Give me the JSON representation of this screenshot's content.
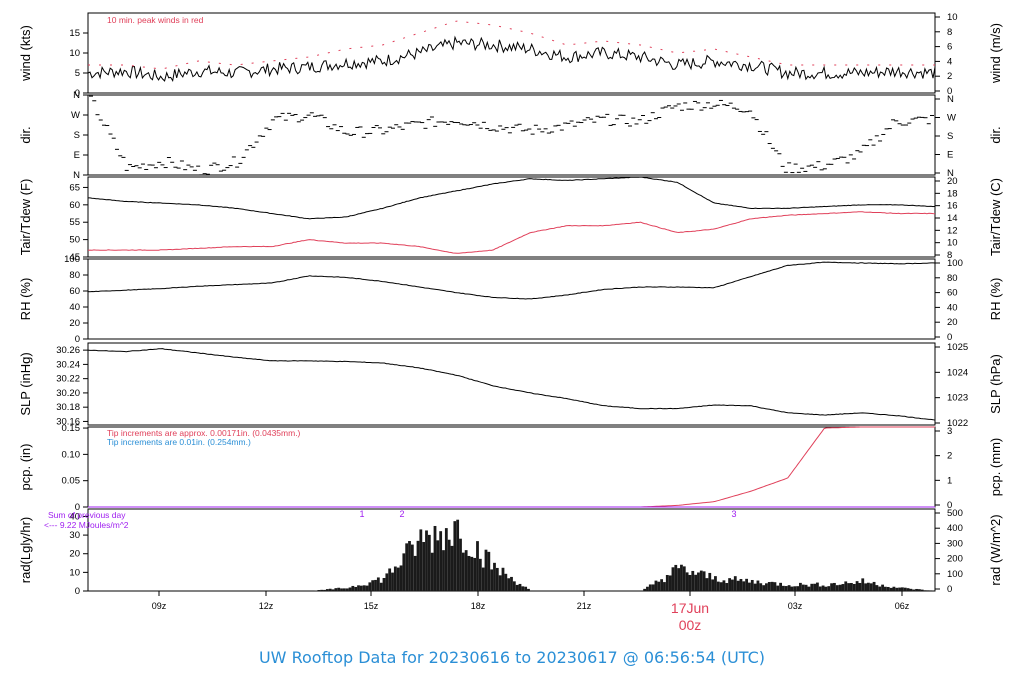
{
  "footer_title": "UW Rooftop Data for 20230616  to  20230617 @ 06:56:54  (UTC)",
  "colors": {
    "primary": "#000000",
    "red": "#e0405a",
    "blue": "#2b8fd6",
    "purple": "#a020f0"
  },
  "x_axis": {
    "ticks": [
      "09z",
      "12z",
      "15z",
      "18z",
      "21z",
      "00z",
      "03z",
      "06z"
    ],
    "date_label": "17Jun",
    "date_sub": "00z"
  },
  "chart_data": [
    {
      "type": "line",
      "id": "wind",
      "ylabel": "wind (kts)",
      "ylabel_right": "wind (m/s)",
      "yticks": [
        0,
        5,
        10,
        15
      ],
      "yticks_right": [
        0,
        2,
        4,
        6,
        8,
        10
      ],
      "ylim": [
        0,
        20
      ],
      "annotation": "10 min. peak winds in red",
      "series": [
        {
          "values": [
            5,
            5.5,
            4,
            5.5,
            5,
            6,
            6.5,
            7.5,
            8,
            10,
            12.5,
            12,
            11,
            9,
            10,
            9,
            7,
            8,
            7,
            5,
            5,
            5,
            5.5,
            5
          ]
        },
        {
          "values": [
            7,
            7,
            6,
            8,
            7,
            8,
            9,
            11,
            12,
            15,
            18,
            17,
            15,
            12,
            13,
            12,
            10,
            11,
            9,
            7,
            7,
            7,
            7,
            7
          ],
          "style": "dashed-red"
        }
      ]
    },
    {
      "type": "scatter",
      "id": "dir",
      "ylabel": "dir.",
      "ylabel_right": "dir.",
      "yticks": [
        "N",
        "E",
        "S",
        "W",
        "N"
      ],
      "yticks_right": [
        "N",
        "E",
        "S",
        "W",
        "N"
      ],
      "ylim": [
        0,
        360
      ],
      "series": [
        {
          "values": [
            340,
            30,
            60,
            20,
            60,
            250,
            270,
            190,
            200,
            230,
            250,
            220,
            200,
            220,
            250,
            240,
            310,
            320,
            300,
            30,
            40,
            90,
            240,
            250
          ]
        }
      ]
    },
    {
      "type": "line",
      "id": "temp",
      "ylabel": "Tair/Tdew (F)",
      "ylabel_right": "Tair/Tdew (C)",
      "yticks": [
        45,
        50,
        55,
        60,
        65
      ],
      "yticks_right": [
        8,
        10,
        12,
        14,
        16,
        18,
        20
      ],
      "ylim": [
        45,
        68
      ],
      "series": [
        {
          "values": [
            62,
            61,
            60.5,
            60,
            59,
            57.5,
            56,
            56.5,
            59,
            62,
            64,
            66,
            67.5,
            67,
            67.5,
            68,
            66.5,
            60.5,
            59,
            59,
            59.5,
            60,
            60,
            59.5
          ]
        },
        {
          "values": [
            47,
            47,
            47,
            47.5,
            48,
            48,
            50,
            49,
            49,
            48,
            46,
            47,
            52,
            54,
            54,
            55,
            52,
            53,
            56,
            57,
            57.5,
            58,
            57.5,
            57.5
          ],
          "style": "red"
        }
      ]
    },
    {
      "type": "line",
      "id": "rh",
      "ylabel": "RH (%)",
      "ylabel_right": "RH (%)",
      "yticks": [
        0,
        20,
        40,
        60,
        80,
        100
      ],
      "yticks_right": [
        0,
        20,
        40,
        60,
        80,
        100
      ],
      "ylim": [
        0,
        100
      ],
      "series": [
        {
          "values": [
            59,
            61,
            63,
            66,
            68,
            70,
            79,
            77,
            72,
            65,
            58,
            52,
            50,
            55,
            62,
            65,
            65,
            64,
            78,
            92,
            96,
            95,
            94,
            95
          ]
        }
      ]
    },
    {
      "type": "line",
      "id": "slp",
      "ylabel": "SLP (inHg)",
      "ylabel_right": "SLP (hPa)",
      "yticks": [
        30.16,
        30.18,
        30.2,
        30.22,
        30.24,
        30.26
      ],
      "yticks_right": [
        1022,
        1023,
        1024,
        1025
      ],
      "ylim": [
        30.155,
        30.27
      ],
      "series": [
        {
          "values": [
            30.26,
            30.258,
            30.262,
            30.256,
            30.25,
            30.245,
            30.245,
            30.244,
            30.242,
            30.235,
            30.225,
            30.21,
            30.2,
            30.192,
            30.182,
            30.178,
            30.178,
            30.183,
            30.182,
            30.172,
            30.169,
            30.172,
            30.168,
            30.162
          ]
        }
      ]
    },
    {
      "type": "line",
      "id": "pcp",
      "ylabel": "pcp. (in)",
      "ylabel_right": "pcp. (mm)",
      "yticks": [
        0.0,
        0.05,
        0.1,
        0.15
      ],
      "yticks_right": [
        0,
        1,
        2,
        3
      ],
      "ylim": [
        0,
        0.152
      ],
      "annotations": [
        "Tip increments are approx. 0.00171in. (0.0435mm.)",
        "Tip increments are 0.01in. (0.254mm.)"
      ],
      "series": [
        {
          "values": [
            0,
            0,
            0,
            0,
            0,
            0,
            0,
            0,
            0,
            0,
            0,
            0,
            0,
            0,
            0,
            0,
            0.003,
            0.01,
            0.03,
            0.055,
            0.15,
            0.152,
            0.152,
            0.152
          ],
          "style": "red"
        },
        {
          "values": [
            0,
            0,
            0,
            0,
            0,
            0,
            0,
            0,
            0,
            0,
            0,
            0,
            0,
            0,
            0,
            0,
            0,
            0,
            0,
            0,
            0,
            0,
            0,
            0
          ],
          "style": "purple"
        }
      ]
    },
    {
      "type": "bar",
      "id": "rad",
      "ylabel": "rad(Lgly/hr)",
      "ylabel_right": "rad (W/m^2)",
      "yticks": [
        0,
        10,
        20,
        30,
        40
      ],
      "yticks_right": [
        0,
        100,
        200,
        300,
        400,
        500
      ],
      "ylim": [
        0,
        44
      ],
      "annotations": [
        "Sum of previous day",
        "<--- 9.22 MJoules/m^2"
      ],
      "markers": [
        "1",
        "2",
        "3"
      ],
      "series": [
        {
          "values": [
            0,
            0,
            0,
            0,
            0,
            0,
            0,
            2,
            8,
            32,
            40,
            15,
            0,
            0,
            0,
            0,
            14,
            8,
            6,
            4,
            4,
            6,
            2,
            0
          ]
        }
      ]
    }
  ]
}
